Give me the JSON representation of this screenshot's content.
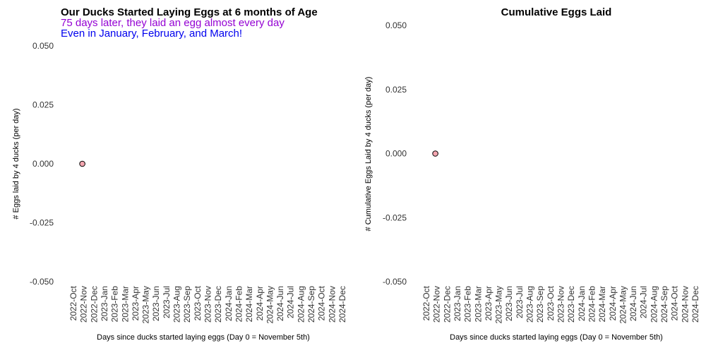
{
  "chart_data": [
    {
      "type": "scatter",
      "title": "Our Ducks Started Laying Eggs at 6 months of Age",
      "subtitles": [
        "75 days later, they laid an egg almost every day",
        "Even in January, February, and March!"
      ],
      "subtitle_colors": [
        "#9400d3",
        "#0000ee"
      ],
      "title_align": "left",
      "xlabel": "Days since ducks started laying eggs (Day 0 = November 5th)",
      "ylabel": "# Eggs laid by 4 ducks (per day)",
      "ylim": [
        -0.05,
        0.05
      ],
      "yticks": [
        "0.050",
        "0.025",
        "0.000",
        "-0.025",
        "-0.050"
      ],
      "ytick_values": [
        0.05,
        0.025,
        0.0,
        -0.025,
        -0.05
      ],
      "xlim": [
        "2022-10-01",
        "2024-12-31"
      ],
      "xticks": [
        "2022-Oct",
        "2022-Nov",
        "2022-Dec",
        "2023-Jan",
        "2023-Feb",
        "2023-Mar",
        "2023-Apr",
        "2023-May",
        "2023-Jun",
        "2023-Jul",
        "2023-Aug",
        "2023-Sep",
        "2023-Oct",
        "2023-Nov",
        "2023-Dec",
        "2024-Jan",
        "2024-Feb",
        "2024-Mar",
        "2024-Apr",
        "2024-May",
        "2024-Jun",
        "2024-Jul",
        "2024-Aug",
        "2024-Sep",
        "2024-Oct",
        "2024-Nov",
        "2024-Dec"
      ],
      "points": [
        {
          "x": "2022-11-05",
          "y": 0
        }
      ],
      "point_color": "#f4a6b0",
      "grid": false
    },
    {
      "type": "scatter",
      "title": "Cumulative Eggs Laid",
      "subtitles": [],
      "subtitle_colors": [],
      "title_align": "center",
      "xlabel": "Days since ducks started laying eggs (Day 0 = November 5th)",
      "ylabel": "# Cumulative Eggs Laid by 4 ducks (per day)",
      "ylim": [
        -0.05,
        0.05
      ],
      "yticks": [
        "0.050",
        "0.025",
        "0.000",
        "-0.025",
        "-0.050"
      ],
      "ytick_values": [
        0.05,
        0.025,
        0.0,
        -0.025,
        -0.05
      ],
      "xlim": [
        "2022-10-01",
        "2024-12-31"
      ],
      "xticks": [
        "2022-Oct",
        "2022-Nov",
        "2022-Dec",
        "2023-Jan",
        "2023-Feb",
        "2023-Mar",
        "2023-Apr",
        "2023-May",
        "2023-Jun",
        "2023-Jul",
        "2023-Aug",
        "2023-Sep",
        "2023-Oct",
        "2023-Nov",
        "2023-Dec",
        "2024-Jan",
        "2024-Feb",
        "2024-Mar",
        "2024-Apr",
        "2024-May",
        "2024-Jun",
        "2024-Jul",
        "2024-Aug",
        "2024-Sep",
        "2024-Oct",
        "2024-Nov",
        "2024-Dec"
      ],
      "points": [
        {
          "x": "2022-11-05",
          "y": 0
        }
      ],
      "point_color": "#f4a6b0",
      "grid": false
    }
  ]
}
